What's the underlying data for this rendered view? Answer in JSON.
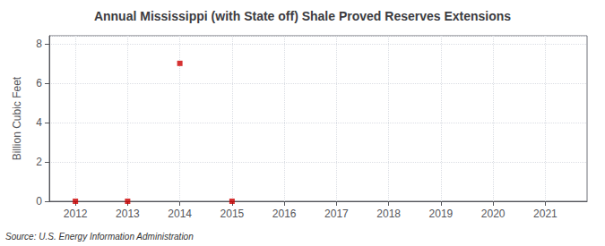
{
  "chart_data": {
    "type": "scatter",
    "title": "Annual Mississippi (with State off) Shale Proved Reserves Extensions",
    "ylabel": "Billion Cubic Feet",
    "annotation": "Source: U.S. Energy Information Administration",
    "x": [
      2012,
      2013,
      2014,
      2015
    ],
    "values": [
      0.0,
      0.0,
      7.0,
      0.0
    ],
    "xlim": [
      2011.5,
      2021.8
    ],
    "xticks": [
      2012,
      2013,
      2014,
      2015,
      2016,
      2017,
      2018,
      2019,
      2020,
      2021
    ],
    "ylim": [
      0,
      8.4
    ],
    "yticks": [
      0,
      2,
      4,
      6,
      8
    ],
    "grid": true,
    "color": "#CC0000",
    "marker": "square"
  }
}
